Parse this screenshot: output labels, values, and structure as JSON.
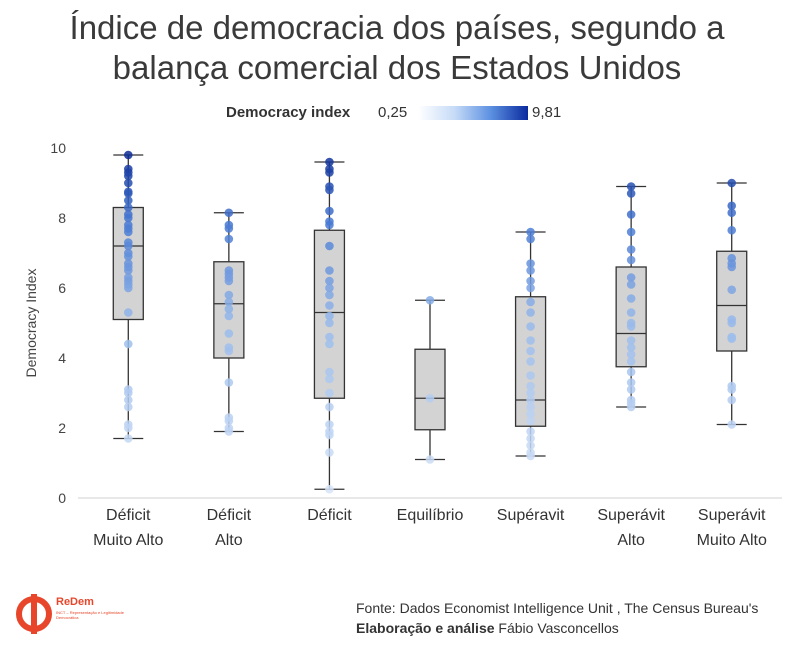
{
  "title": {
    "line1": "Índice de democracia dos países, segundo a",
    "line2": "balança comercial dos Estados Unidos"
  },
  "legend": {
    "title": "Democracy index",
    "min": "0,25",
    "max": "9,81",
    "color_low": "#ffffff",
    "color_high": "#0a2a9e"
  },
  "chart_data": {
    "type": "boxplot",
    "title": "Índice de democracia dos países, segundo a balança comercial dos Estados Unidos",
    "xlabel": "",
    "ylabel": "Democracy Index",
    "ylim": [
      0,
      10
    ],
    "yticks": [
      0,
      2,
      4,
      6,
      8,
      10
    ],
    "color_scale": {
      "min": 0.25,
      "max": 9.81
    },
    "categories": [
      [
        "Déficit",
        "Muito Alto"
      ],
      [
        "Déficit",
        "Alto"
      ],
      [
        "Déficit"
      ],
      [
        "Equilíbrio"
      ],
      [
        "Supéravit"
      ],
      [
        "Superávit",
        "Alto"
      ],
      [
        "Superávit",
        "Muito Alto"
      ]
    ],
    "boxes": [
      {
        "min": 1.7,
        "q1": 5.1,
        "median": 7.2,
        "q3": 8.3,
        "max": 9.8,
        "points": [
          9.8,
          9.4,
          9.3,
          9.2,
          9.0,
          8.75,
          8.7,
          8.5,
          8.3,
          8.1,
          8.0,
          7.8,
          7.7,
          7.6,
          7.3,
          7.2,
          7.0,
          6.9,
          6.7,
          6.6,
          6.5,
          6.3,
          6.2,
          6.1,
          6.0,
          5.3,
          4.4,
          3.1,
          3.0,
          2.8,
          2.6,
          2.1,
          2.0,
          1.7
        ]
      },
      {
        "min": 1.9,
        "q1": 4.0,
        "median": 5.55,
        "q3": 6.75,
        "max": 8.15,
        "points": [
          8.15,
          7.8,
          7.7,
          7.4,
          6.5,
          6.4,
          6.3,
          6.2,
          5.8,
          5.6,
          5.4,
          5.2,
          4.7,
          4.3,
          4.2,
          3.3,
          2.3,
          2.2,
          2.0,
          1.9
        ]
      },
      {
        "min": 0.25,
        "q1": 2.85,
        "median": 5.3,
        "q3": 7.65,
        "max": 9.6,
        "points": [
          9.6,
          9.4,
          9.3,
          8.9,
          8.8,
          8.2,
          7.9,
          7.8,
          7.2,
          6.5,
          6.2,
          6.0,
          5.8,
          5.5,
          5.2,
          5.0,
          4.6,
          4.4,
          3.6,
          3.4,
          3.0,
          2.6,
          2.1,
          1.9,
          1.8,
          1.3,
          0.25
        ]
      },
      {
        "min": 1.1,
        "q1": 1.95,
        "median": 2.85,
        "q3": 4.25,
        "max": 5.65,
        "points": [
          5.65,
          2.85,
          1.1
        ]
      },
      {
        "min": 1.2,
        "q1": 2.05,
        "median": 2.8,
        "q3": 5.75,
        "max": 7.6,
        "points": [
          7.6,
          7.4,
          6.7,
          6.5,
          6.2,
          6.0,
          5.6,
          5.3,
          4.9,
          4.5,
          4.2,
          3.9,
          3.5,
          3.2,
          3.0,
          2.8,
          2.6,
          2.4,
          2.2,
          1.9,
          1.7,
          1.5,
          1.3,
          1.2
        ]
      },
      {
        "min": 2.6,
        "q1": 3.75,
        "median": 4.7,
        "q3": 6.6,
        "max": 8.9,
        "points": [
          8.9,
          8.7,
          8.1,
          7.6,
          7.1,
          6.8,
          6.3,
          6.1,
          5.7,
          5.3,
          5.0,
          4.9,
          4.5,
          4.3,
          4.1,
          3.9,
          3.6,
          3.3,
          3.1,
          2.8,
          2.7,
          2.6
        ]
      },
      {
        "min": 2.1,
        "q1": 4.2,
        "median": 5.5,
        "q3": 7.05,
        "max": 9.0,
        "points": [
          9.0,
          8.35,
          8.15,
          7.65,
          6.85,
          6.7,
          6.6,
          5.95,
          5.1,
          5.0,
          4.6,
          4.55,
          3.2,
          3.1,
          2.8,
          2.1
        ]
      }
    ]
  },
  "source": {
    "line1": "Fonte: Dados Economist Intelligence Unit , The Census Bureau's",
    "line2_bold": "Elaboração e análise",
    "line2_rest": " Fábio Vasconcellos"
  },
  "logo": {
    "name": "ReDem",
    "tagline": "INCT – Representação e Legitimidade Democrática"
  }
}
